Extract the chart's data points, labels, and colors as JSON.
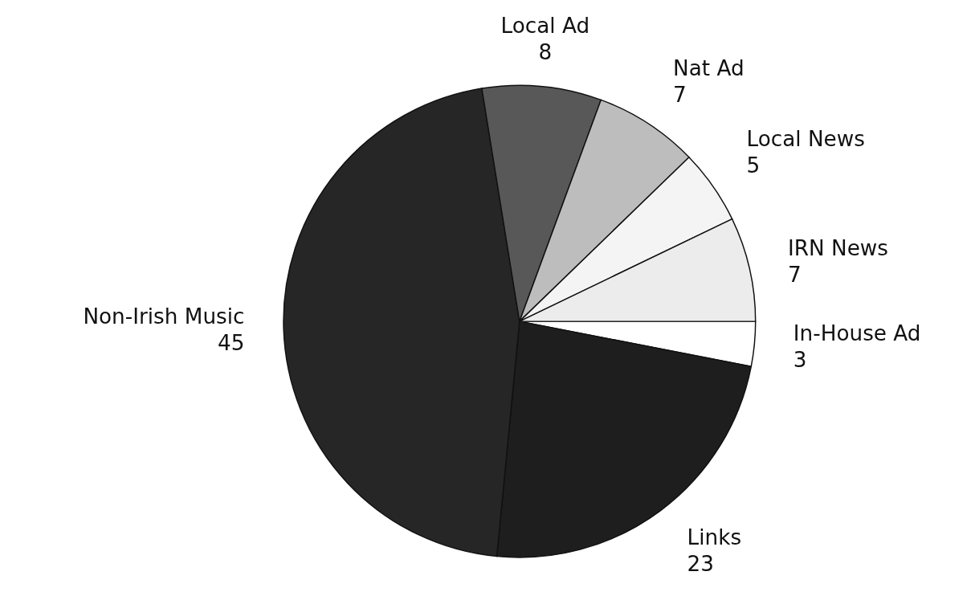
{
  "chart_data": {
    "type": "pie",
    "categories": [
      "In-House Ad",
      "Links",
      "Non-Irish Music",
      "Local Ad",
      "Nat Ad",
      "Local News",
      "IRN News"
    ],
    "values": [
      3,
      23,
      45,
      8,
      7,
      5,
      7
    ],
    "colors": [
      "#ffffff",
      "#1e1e1e",
      "#262626",
      "#585858",
      "#bdbdbd",
      "#f4f4f4",
      "#ececec"
    ],
    "data_labels": true
  }
}
